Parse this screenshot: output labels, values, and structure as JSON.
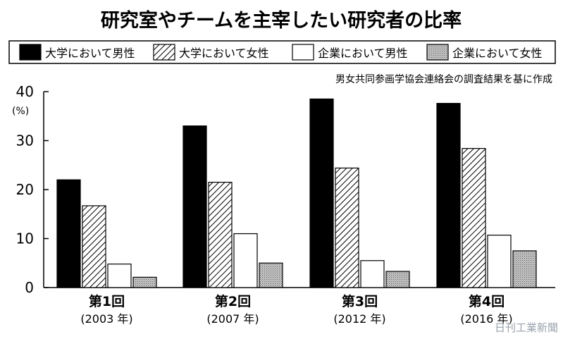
{
  "chart_data": {
    "type": "bar",
    "title": "研究室やチームを主宰したい研究者の比率",
    "source_note": "男女共同参画学協会連絡会の調査結果を基に作成",
    "ylabel": "",
    "unit_label": "(%)",
    "ylim": [
      0,
      40
    ],
    "yticks": [
      0,
      10,
      20,
      30,
      40
    ],
    "categories": [
      "第1回",
      "第2回",
      "第3回",
      "第4回"
    ],
    "category_years": [
      "(2003 年)",
      "(2007 年)",
      "(2012 年)",
      "(2016 年)"
    ],
    "legend_position": "top",
    "series": [
      {
        "name": "大学において男性",
        "fill": "black",
        "values": [
          22.0,
          33.0,
          38.5,
          37.6
        ]
      },
      {
        "name": "大学において女性",
        "fill": "hatch",
        "values": [
          16.7,
          21.5,
          24.4,
          28.4
        ]
      },
      {
        "name": "企業において男性",
        "fill": "white",
        "values": [
          4.8,
          11.0,
          5.5,
          10.7
        ]
      },
      {
        "name": "企業において女性",
        "fill": "dots",
        "values": [
          2.1,
          5.0,
          3.3,
          7.5
        ]
      }
    ]
  },
  "watermark": "日刊工業新聞"
}
